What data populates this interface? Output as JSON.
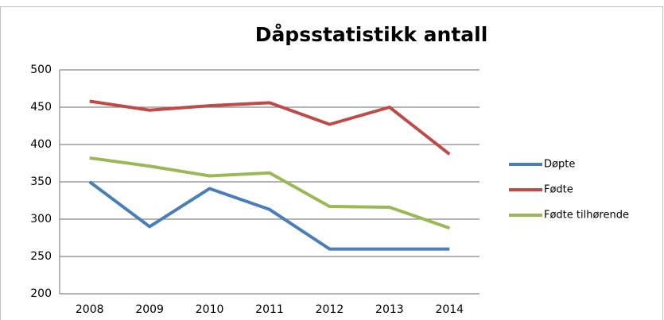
{
  "chart_data": {
    "type": "line",
    "title": "Dåpsstatistikk antall",
    "categories": [
      "2008",
      "2009",
      "2010",
      "2011",
      "2012",
      "2013",
      "2014"
    ],
    "series": [
      {
        "name": "Døpte",
        "color": "#4a7ebb",
        "values": [
          350,
          290,
          341,
          313,
          260,
          260,
          260
        ]
      },
      {
        "name": "Fødte",
        "color": "#be4b48",
        "values": [
          458,
          446,
          452,
          456,
          427,
          450,
          387
        ]
      },
      {
        "name": "Fødte tilhørende",
        "color": "#98b954",
        "values": [
          382,
          371,
          358,
          362,
          317,
          316,
          288
        ]
      }
    ],
    "ylim": [
      200,
      500
    ],
    "yticks": [
      200,
      250,
      300,
      350,
      400,
      450,
      500
    ],
    "grid": true,
    "legend": "right"
  }
}
